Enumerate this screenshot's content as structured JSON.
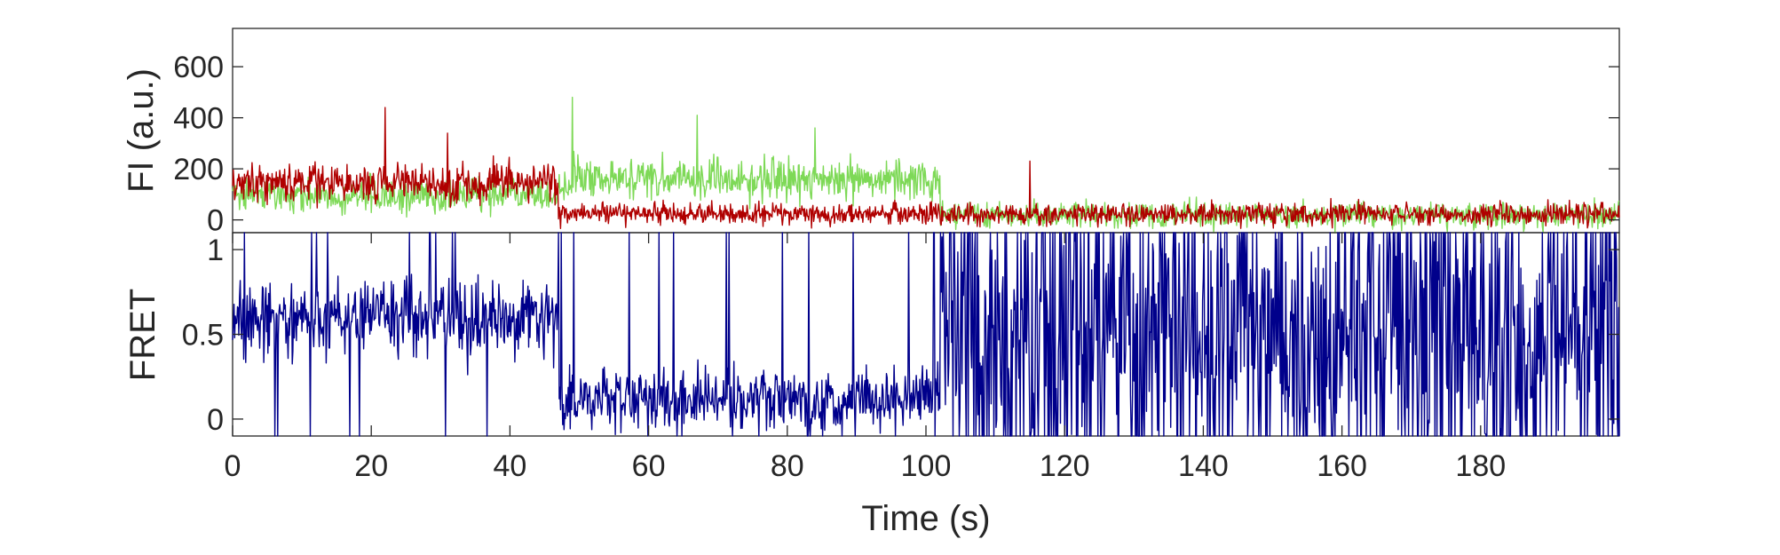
{
  "chart_data": [
    {
      "type": "line",
      "panel": "top",
      "ylabel": "FI (a.u.)",
      "xlim": [
        0,
        200
      ],
      "ylim": [
        -50,
        750
      ],
      "yticks": [
        0,
        200,
        400,
        600
      ],
      "ytick_labels": [
        "0",
        "200",
        "400",
        "600"
      ],
      "grid": false,
      "series": [
        {
          "color": "#7ed957",
          "segments": [
            {
              "t0": 0,
              "t1": 47,
              "mean": 95,
              "noise": 45
            },
            {
              "t0": 47,
              "t1": 102,
              "mean": 160,
              "noise": 55
            },
            {
              "t0": 102,
              "t1": 200,
              "mean": 18,
              "noise": 35
            }
          ],
          "peaks": [
            [
              49,
              480
            ],
            [
              67,
              410
            ],
            [
              84,
              360
            ]
          ]
        },
        {
          "color": "#b00000",
          "segments": [
            {
              "t0": 0,
              "t1": 47,
              "mean": 145,
              "noise": 50
            },
            {
              "t0": 47,
              "t1": 102,
              "mean": 25,
              "noise": 30
            },
            {
              "t0": 102,
              "t1": 200,
              "mean": 22,
              "noise": 30
            }
          ],
          "peaks": [
            [
              22,
              440
            ],
            [
              31,
              340
            ],
            [
              115,
              230
            ]
          ]
        }
      ]
    },
    {
      "type": "line",
      "panel": "bottom",
      "xlabel": "Time (s)",
      "ylabel": "FRET",
      "xlim": [
        0,
        200
      ],
      "ylim": [
        -0.1,
        1.1
      ],
      "xticks": [
        0,
        20,
        40,
        60,
        80,
        100,
        120,
        140,
        160,
        180
      ],
      "xtick_labels": [
        "0",
        "20",
        "40",
        "60",
        "80",
        "100",
        "120",
        "140",
        "160",
        "180"
      ],
      "yticks": [
        0,
        0.5,
        1
      ],
      "ytick_labels": [
        "0",
        "0.5",
        "1"
      ],
      "grid": false,
      "series": [
        {
          "color": "#00008b",
          "segments": [
            {
              "t0": 0,
              "t1": 47,
              "mean": 0.6,
              "noise": 0.16,
              "spike_rate": 0.03
            },
            {
              "t0": 47,
              "t1": 102,
              "mean": 0.12,
              "noise": 0.13,
              "spike_rate": 0.05
            },
            {
              "t0": 102,
              "t1": 200,
              "mean": 0.5,
              "noise": 0.6,
              "spike_rate": 0.25
            }
          ]
        }
      ]
    }
  ]
}
